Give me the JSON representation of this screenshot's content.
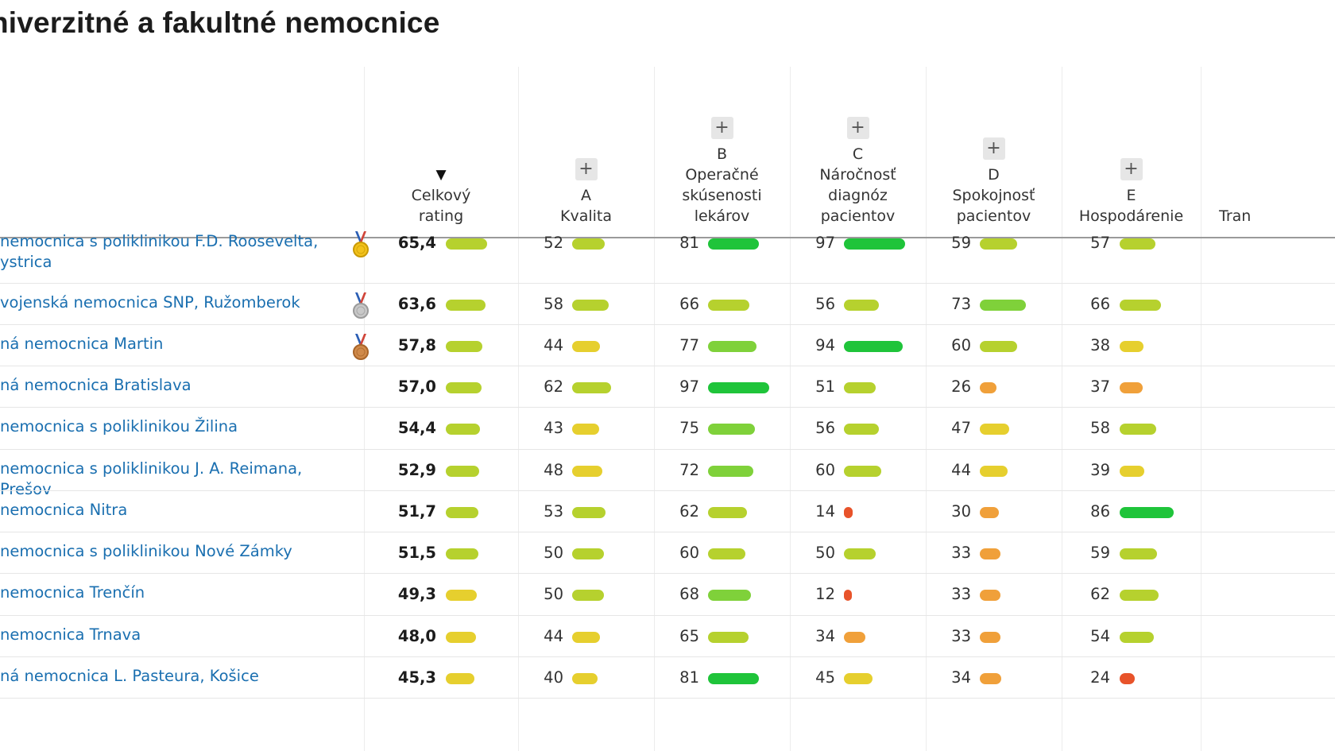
{
  "title": "niverzitné a fakultné nemocnice",
  "columns": [
    {
      "key": "total",
      "letter": "",
      "label": "Celkový\nrating",
      "sort_indicator": "▼",
      "expandable": false
    },
    {
      "key": "a",
      "letter": "A",
      "label": "Kvalita",
      "sort_indicator": "",
      "expandable": true
    },
    {
      "key": "b",
      "letter": "B",
      "label": "Operačné\nskúsenosti\nlekárov",
      "sort_indicator": "",
      "expandable": true
    },
    {
      "key": "c",
      "letter": "C",
      "label": "Náročnosť\ndiagnóz\npacientov",
      "sort_indicator": "",
      "expandable": true
    },
    {
      "key": "d",
      "letter": "D",
      "label": "Spokojnosť\npacientov",
      "sort_indicator": "",
      "expandable": true
    },
    {
      "key": "e",
      "letter": "E",
      "label": "Hospodárenie",
      "sort_indicator": "",
      "expandable": true
    },
    {
      "key": "f",
      "letter": "",
      "label": "Tran",
      "sort_indicator": "",
      "expandable": false
    }
  ],
  "plus_label": "+",
  "medal_icons": {
    "gold": "gold-medal-icon",
    "silver": "silver-medal-icon",
    "bronze": "bronze-medal-icon"
  },
  "bar_colors": {
    "red": "#e8532a",
    "orange": "#f0a03a",
    "yellow": "#e6cf2e",
    "yellowgreen": "#b6d12e",
    "lightgreen": "#7fd13a",
    "green": "#1fc43a"
  },
  "rows": [
    {
      "name": "nemocnica s poliklinikou F.D. Roosevelta,\nystrica",
      "medal": "gold",
      "total": "65,4",
      "total_value": 65.4,
      "a": 52,
      "b": 81,
      "c": 97,
      "d": 59,
      "e": 57
    },
    {
      "name": "vojenská nemocnica SNP, Ružomberok",
      "medal": "silver",
      "total": "63,6",
      "total_value": 63.6,
      "a": 58,
      "b": 66,
      "c": 56,
      "d": 73,
      "e": 66
    },
    {
      "name": "ná nemocnica Martin",
      "medal": "bronze",
      "total": "57,8",
      "total_value": 57.8,
      "a": 44,
      "b": 77,
      "c": 94,
      "d": 60,
      "e": 38
    },
    {
      "name": "ná nemocnica Bratislava",
      "medal": "",
      "total": "57,0",
      "total_value": 57.0,
      "a": 62,
      "b": 97,
      "c": 51,
      "d": 26,
      "e": 37
    },
    {
      "name": "nemocnica s poliklinikou Žilina",
      "medal": "",
      "total": "54,4",
      "total_value": 54.4,
      "a": 43,
      "b": 75,
      "c": 56,
      "d": 47,
      "e": 58
    },
    {
      "name": "nemocnica s poliklinikou J. A. Reimana, Prešov",
      "medal": "",
      "total": "52,9",
      "total_value": 52.9,
      "a": 48,
      "b": 72,
      "c": 60,
      "d": 44,
      "e": 39
    },
    {
      "name": "nemocnica Nitra",
      "medal": "",
      "total": "51,7",
      "total_value": 51.7,
      "a": 53,
      "b": 62,
      "c": 14,
      "d": 30,
      "e": 86
    },
    {
      "name": "nemocnica s poliklinikou Nové Zámky",
      "medal": "",
      "total": "51,5",
      "total_value": 51.5,
      "a": 50,
      "b": 60,
      "c": 50,
      "d": 33,
      "e": 59
    },
    {
      "name": "nemocnica Trenčín",
      "medal": "",
      "total": "49,3",
      "total_value": 49.3,
      "a": 50,
      "b": 68,
      "c": 12,
      "d": 33,
      "e": 62
    },
    {
      "name": "nemocnica Trnava",
      "medal": "",
      "total": "48,0",
      "total_value": 48.0,
      "a": 44,
      "b": 65,
      "c": 34,
      "d": 33,
      "e": 54
    },
    {
      "name": "ná nemocnica L. Pasteura, Košice",
      "medal": "",
      "total": "45,3",
      "total_value": 45.3,
      "a": 40,
      "b": 81,
      "c": 45,
      "d": 34,
      "e": 24
    }
  ]
}
